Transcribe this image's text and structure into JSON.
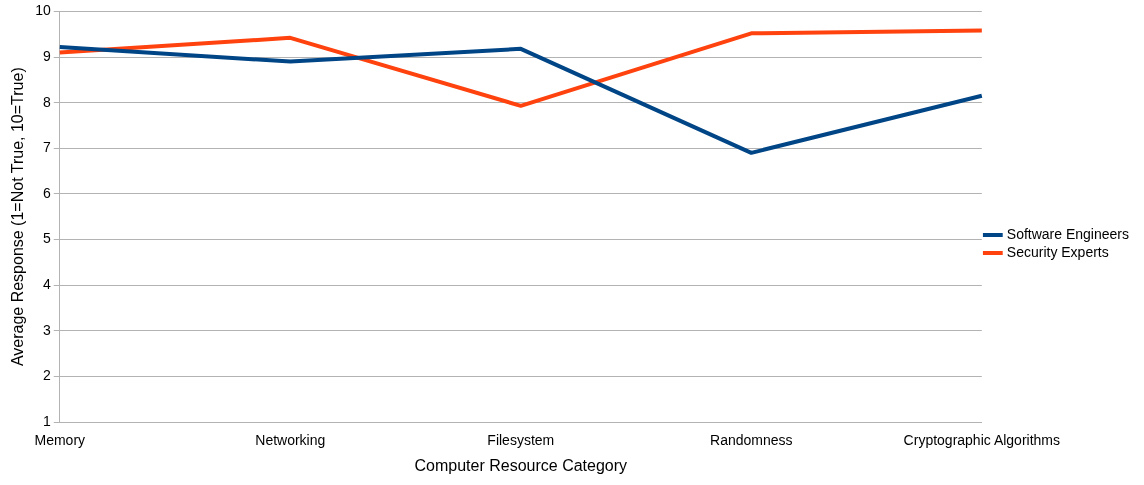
{
  "chart_data": {
    "type": "line",
    "xlabel": "Computer Resource Category",
    "ylabel": "Average Response (1=Not True, 10=True)",
    "categories": [
      "Memory",
      "Networking",
      "Filesystem",
      "Randomness",
      "Cryptographic Algorithms"
    ],
    "series": [
      {
        "name": "Software Engineers",
        "color": "#004586",
        "values": [
          9.22,
          8.9,
          9.18,
          6.9,
          8.15
        ]
      },
      {
        "name": "Security Experts",
        "color": "#ff420e",
        "values": [
          9.1,
          9.42,
          7.93,
          9.52,
          9.58
        ]
      }
    ],
    "ylim": [
      1,
      10
    ],
    "yticks": [
      1,
      2,
      3,
      4,
      5,
      6,
      7,
      8,
      9,
      10
    ],
    "grid": "y",
    "legend": "right",
    "marker": "none",
    "line_style": "solid"
  }
}
